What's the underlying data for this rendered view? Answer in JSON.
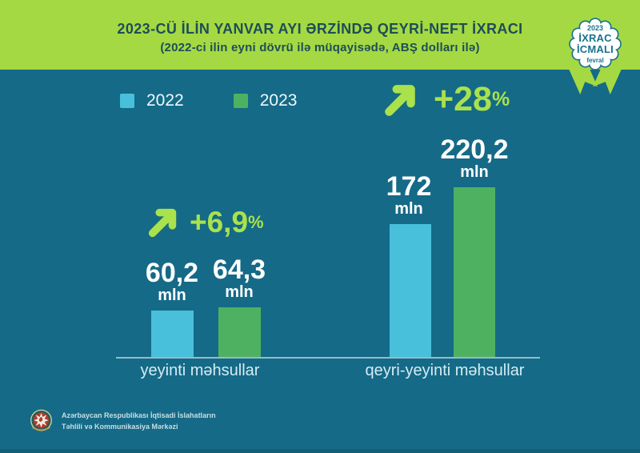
{
  "colors": {
    "background": "#156a87",
    "band_green": "#a5d943",
    "accent_green": "#a9e24b",
    "bar_blue": "#48c0dc",
    "bar_green": "#4eb161",
    "title_text": "#1d4e57",
    "badge_teal": "#19728c"
  },
  "header": {
    "title": "2023-CÜ İLİN YANVAR AYI ƏRZİNDƏ QEYRİ-NEFT İXRACI",
    "subtitle": "(2022-ci ilin eyni dövrü ilə müqayisədə, ABŞ dolları ilə)"
  },
  "badge": {
    "year": "2023",
    "title_line1": "İXRAC",
    "title_line2": "İCMALI",
    "month": "fevral"
  },
  "chart_data": {
    "type": "bar",
    "title": "2023-cü ilin yanvar ayı ərzində qeyri-neft ixracı",
    "subtitle": "2022-ci ilin eyni dövrü ilə müqayisədə, ABŞ dolları ilə",
    "unit": "mln",
    "grid": false,
    "legend_position": "top-left",
    "categories": [
      "yeyinti məhsullar",
      "qeyri-yeyinti məhsullar"
    ],
    "series": [
      {
        "name": "2022",
        "color": "#48c0dc",
        "values": [
          60.2,
          172
        ]
      },
      {
        "name": "2023",
        "color": "#4eb161",
        "values": [
          64.3,
          220.2
        ]
      }
    ],
    "display": {
      "values": [
        [
          "60,2",
          "64,3"
        ],
        [
          "172",
          "220,2"
        ]
      ],
      "growth": [
        {
          "value": "+6,9",
          "suffix": "%"
        },
        {
          "value": "+28",
          "suffix": "%"
        }
      ]
    }
  },
  "footer": {
    "org_line1": "Azərbaycan Respublikası İqtisadi İslahatların",
    "org_line2": "Təhlili və Kommunikasiya Mərkəzi"
  }
}
